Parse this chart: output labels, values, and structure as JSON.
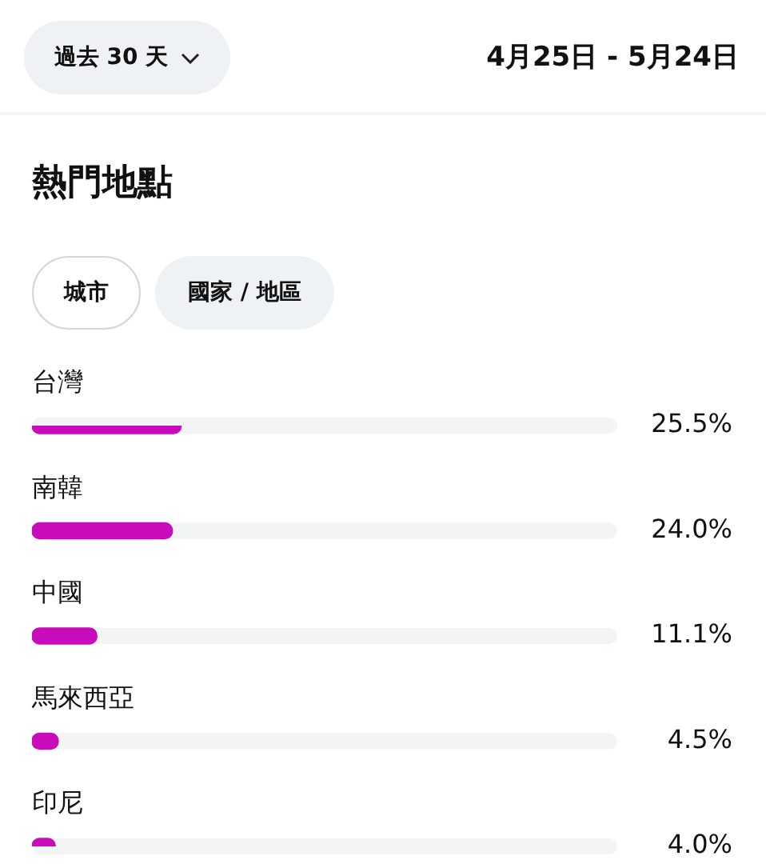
{
  "chart_data": {
    "type": "bar",
    "orientation": "horizontal",
    "title": "熱門地點",
    "categories": [
      "台灣",
      "南韓",
      "中國",
      "馬來西亞",
      "印尼"
    ],
    "values": [
      25.5,
      24.0,
      11.1,
      4.5,
      4.0
    ],
    "color": "#c80cbc",
    "value_labels": [
      "25.5%",
      "24.0%",
      "11.1%",
      "4.5%",
      "4.0%"
    ],
    "xlim": [
      0,
      100
    ],
    "tick_labels": "y",
    "annotations": [
      "過去 30 天",
      "4月25日 - 5月24日",
      "城市",
      "國家 / 地區"
    ]
  }
}
